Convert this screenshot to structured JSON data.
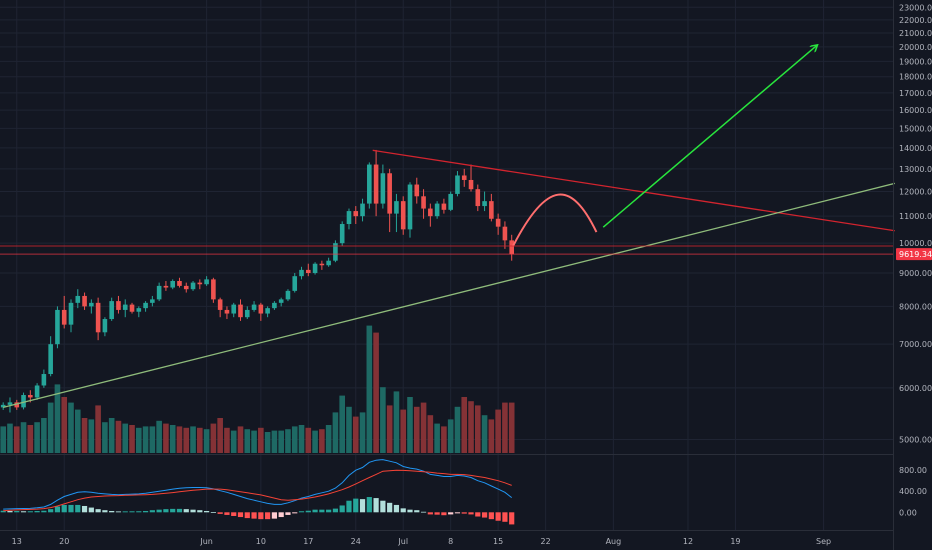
{
  "chart_data": {
    "type": "candlestick",
    "price_axis": {
      "ticks": [
        5000,
        6000,
        7000,
        8000,
        9000,
        10000,
        11000,
        12000,
        13000,
        14000,
        15000,
        16000,
        17000,
        18000,
        19000,
        20000,
        21000,
        22000,
        23000
      ],
      "tick_labels": [
        "5000.00",
        "6000.00",
        "7000.00",
        "8000.00",
        "9000.00",
        "10000.00",
        "11000.00",
        "12000.00",
        "13000.00",
        "14000.00",
        "15000.00",
        "16000.00",
        "17000.00",
        "18000.00",
        "19000.00",
        "20000.00",
        "21000.00",
        "22000.00",
        "23000.00"
      ],
      "scale": "log",
      "range": [
        4750,
        23600
      ]
    },
    "current_price": {
      "value": 9619.34,
      "label": "9619.34",
      "color": "#f23645"
    },
    "time_axis": {
      "labels": [
        "13",
        "20",
        "Jun",
        "10",
        "17",
        "24",
        "Jul",
        "8",
        "15",
        "22",
        "Aug",
        "12",
        "19",
        "Sep"
      ],
      "label_bar_index": [
        2,
        9,
        30,
        38,
        45,
        52,
        59,
        66,
        73,
        80,
        90,
        101,
        108,
        121
      ]
    },
    "candles_ohlc": [
      [
        5600,
        5700,
        5550,
        5650
      ],
      [
        5650,
        5800,
        5500,
        5700
      ],
      [
        5700,
        5750,
        5550,
        5600
      ],
      [
        5600,
        5900,
        5560,
        5850
      ],
      [
        5850,
        5950,
        5700,
        5800
      ],
      [
        5800,
        6100,
        5750,
        6050
      ],
      [
        6050,
        6400,
        6000,
        6300
      ],
      [
        6300,
        7200,
        6250,
        7000
      ],
      [
        7000,
        8000,
        6900,
        7900
      ],
      [
        7900,
        8300,
        7400,
        7500
      ],
      [
        7500,
        8200,
        7300,
        8100
      ],
      [
        8100,
        8500,
        7950,
        8300
      ],
      [
        8300,
        8400,
        7900,
        8000
      ],
      [
        8000,
        8200,
        7800,
        8100
      ],
      [
        8100,
        8250,
        7100,
        7300
      ],
      [
        7300,
        7700,
        7200,
        7650
      ],
      [
        7650,
        8250,
        7600,
        8150
      ],
      [
        8150,
        8300,
        7800,
        7900
      ],
      [
        7900,
        8200,
        7700,
        8050
      ],
      [
        8050,
        8100,
        7800,
        7850
      ],
      [
        7850,
        8000,
        7700,
        7950
      ],
      [
        7950,
        8150,
        7850,
        8100
      ],
      [
        8100,
        8300,
        8000,
        8200
      ],
      [
        8200,
        8700,
        8150,
        8600
      ],
      [
        8600,
        8750,
        8450,
        8550
      ],
      [
        8550,
        8800,
        8500,
        8750
      ],
      [
        8750,
        8850,
        8550,
        8600
      ],
      [
        8600,
        8700,
        8400,
        8500
      ],
      [
        8500,
        8750,
        8450,
        8700
      ],
      [
        8700,
        8800,
        8500,
        8650
      ],
      [
        8650,
        8900,
        8600,
        8800
      ],
      [
        8800,
        8850,
        8100,
        8200
      ],
      [
        8200,
        8250,
        7700,
        7900
      ],
      [
        7900,
        8000,
        7650,
        7800
      ],
      [
        7800,
        8100,
        7700,
        8050
      ],
      [
        8050,
        8200,
        7600,
        7700
      ],
      [
        7700,
        8000,
        7650,
        7900
      ],
      [
        7900,
        8150,
        7850,
        8050
      ],
      [
        8050,
        8100,
        7600,
        7800
      ],
      [
        7800,
        8000,
        7700,
        7950
      ],
      [
        7950,
        8150,
        7900,
        8100
      ],
      [
        8100,
        8250,
        8000,
        8200
      ],
      [
        8200,
        8500,
        8150,
        8450
      ],
      [
        8450,
        9000,
        8400,
        8900
      ],
      [
        8900,
        9200,
        8800,
        9100
      ],
      [
        9100,
        9300,
        8900,
        9000
      ],
      [
        9000,
        9350,
        8950,
        9300
      ],
      [
        9300,
        9400,
        9100,
        9250
      ],
      [
        9250,
        9500,
        9200,
        9400
      ],
      [
        9400,
        10100,
        9350,
        10000
      ],
      [
        10000,
        10800,
        9900,
        10700
      ],
      [
        10700,
        11300,
        10500,
        11200
      ],
      [
        11200,
        11400,
        10700,
        11000
      ],
      [
        11000,
        11700,
        10800,
        11500
      ],
      [
        11500,
        13300,
        11300,
        13200
      ],
      [
        13200,
        13900,
        11000,
        11500
      ],
      [
        11500,
        13200,
        11300,
        12800
      ],
      [
        12800,
        13000,
        10400,
        11100
      ],
      [
        11100,
        11900,
        10400,
        11600
      ],
      [
        11600,
        11800,
        10300,
        10500
      ],
      [
        10500,
        12400,
        10200,
        12300
      ],
      [
        12300,
        12600,
        11500,
        11800
      ],
      [
        11800,
        12100,
        10900,
        11300
      ],
      [
        11300,
        11500,
        10600,
        11000
      ],
      [
        11000,
        11600,
        10900,
        11500
      ],
      [
        11500,
        11700,
        11100,
        11250
      ],
      [
        11250,
        12000,
        11200,
        11900
      ],
      [
        11900,
        12900,
        11800,
        12700
      ],
      [
        12700,
        13000,
        12200,
        12500
      ],
      [
        12500,
        13200,
        12000,
        12100
      ],
      [
        12100,
        12300,
        11200,
        11400
      ],
      [
        11400,
        12000,
        11200,
        11600
      ],
      [
        11600,
        11900,
        10800,
        10900
      ],
      [
        10900,
        11100,
        10300,
        10600
      ],
      [
        10600,
        10800,
        9800,
        10100
      ],
      [
        10100,
        10300,
        9400,
        9619
      ]
    ],
    "volume_relative": [
      0.19,
      0.21,
      0.19,
      0.22,
      0.2,
      0.22,
      0.25,
      0.36,
      0.49,
      0.4,
      0.36,
      0.31,
      0.25,
      0.24,
      0.34,
      0.22,
      0.25,
      0.23,
      0.21,
      0.2,
      0.18,
      0.19,
      0.19,
      0.23,
      0.21,
      0.2,
      0.19,
      0.18,
      0.19,
      0.18,
      0.17,
      0.21,
      0.25,
      0.18,
      0.16,
      0.19,
      0.17,
      0.16,
      0.18,
      0.15,
      0.16,
      0.16,
      0.17,
      0.19,
      0.2,
      0.18,
      0.16,
      0.17,
      0.2,
      0.29,
      0.41,
      0.33,
      0.26,
      0.29,
      0.91,
      0.86,
      0.47,
      0.34,
      0.44,
      0.31,
      0.4,
      0.33,
      0.36,
      0.27,
      0.21,
      0.19,
      0.24,
      0.33,
      0.4,
      0.37,
      0.34,
      0.27,
      0.24,
      0.31,
      0.36,
      0.36
    ],
    "macd": {
      "scale_ticks": [
        0,
        400,
        800
      ],
      "scale_labels": [
        "0.00",
        "400.00",
        "800.00"
      ],
      "range": [
        -260,
        1050
      ],
      "macd_line": [
        60,
        65,
        70,
        72,
        75,
        85,
        100,
        150,
        230,
        300,
        340,
        380,
        390,
        380,
        360,
        350,
        340,
        335,
        340,
        345,
        350,
        360,
        380,
        400,
        420,
        440,
        455,
        465,
        470,
        470,
        465,
        445,
        410,
        380,
        340,
        300,
        260,
        230,
        200,
        170,
        150,
        150,
        180,
        220,
        270,
        300,
        340,
        370,
        400,
        460,
        560,
        700,
        800,
        850,
        950,
        990,
        1000,
        970,
        940,
        870,
        840,
        820,
        780,
        720,
        700,
        680,
        680,
        700,
        690,
        660,
        600,
        560,
        500,
        440,
        380,
        280
      ],
      "signal_line": [
        30,
        40,
        45,
        52,
        55,
        60,
        70,
        90,
        120,
        160,
        200,
        240,
        270,
        290,
        300,
        310,
        315,
        318,
        322,
        326,
        330,
        335,
        340,
        350,
        360,
        375,
        390,
        405,
        420,
        430,
        440,
        440,
        440,
        430,
        410,
        390,
        370,
        350,
        330,
        300,
        270,
        240,
        230,
        240,
        250,
        270,
        290,
        320,
        350,
        390,
        430,
        480,
        540,
        600,
        660,
        720,
        780,
        790,
        800,
        795,
        790,
        780,
        770,
        760,
        745,
        735,
        720,
        720,
        715,
        700,
        680,
        660,
        630,
        600,
        560,
        510
      ]
    },
    "annotations": [
      {
        "type": "trendline",
        "color": "#d3242e",
        "from": {
          "bar": 54.5,
          "price": 13880
        },
        "to": {
          "bar": 131.5,
          "price": 10450
        }
      },
      {
        "type": "trendline",
        "color": "#8fbc7b",
        "from": {
          "bar": 0,
          "price": 5600
        },
        "to": {
          "bar": 131.5,
          "price": 12350
        }
      },
      {
        "type": "curve",
        "color": "#ff6e6e",
        "points": [
          {
            "bar": 75.2,
            "price": 9900
          },
          {
            "bar": 82,
            "price": 11900
          },
          {
            "bar": 87.5,
            "price": 10400
          }
        ]
      },
      {
        "type": "arrow",
        "color": "#28e53d",
        "from": {
          "bar": 88.5,
          "price": 10580
        },
        "to": {
          "bar": 120,
          "price": 20100
        }
      },
      {
        "type": "hline",
        "color": "#d3242e",
        "price": 9900
      }
    ],
    "colors": {
      "up": "#26a69a",
      "down": "#ef5350",
      "background": "#131722",
      "grid": "#1f2433"
    }
  }
}
